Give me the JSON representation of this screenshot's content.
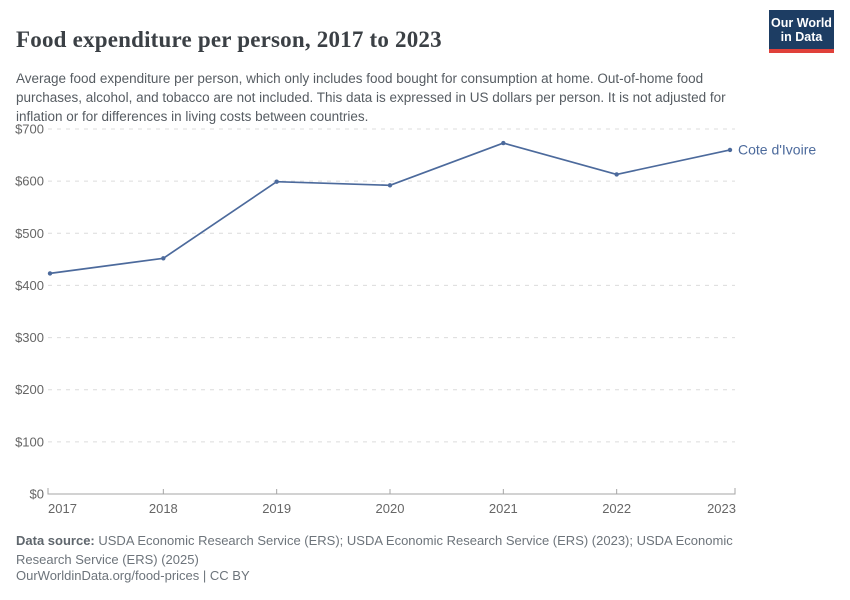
{
  "header": {
    "title": "Food expenditure per person, 2017 to 2023",
    "subtitle": "Average food expenditure per person, which only includes food bought for consumption at home. Out-of-home food purchases, alcohol, and tobacco are not included. This data is expressed in US dollars per person. It is not adjusted for inflation or for differences in living costs between countries.",
    "logo": {
      "line1": "Our World",
      "line2": "in Data"
    }
  },
  "chart_data": {
    "type": "line",
    "title": "Food expenditure per person, 2017 to 2023",
    "x": [
      2017,
      2018,
      2019,
      2020,
      2021,
      2022,
      2023
    ],
    "series": [
      {
        "name": "Cote d'Ivoire",
        "color": "#4C6A9C",
        "values": [
          423,
          452,
          599,
          592,
          673,
          613,
          660
        ]
      }
    ],
    "unit": "US dollars per person",
    "ylim": [
      0,
      700
    ],
    "yticks": [
      0,
      100,
      200,
      300,
      400,
      500,
      600,
      700
    ],
    "ytick_labels": [
      "$0",
      "$100",
      "$200",
      "$300",
      "$400",
      "$500",
      "$600",
      "$700"
    ],
    "xtick_labels": [
      "2017",
      "2018",
      "2019",
      "2020",
      "2021",
      "2022",
      "2023"
    ],
    "grid": "horizontal-dashed",
    "legend_position": "line-end-label"
  },
  "footer": {
    "data_source_label": "Data source:",
    "data_source_text": "USDA Economic Research Service (ERS); USDA Economic Research Service (ERS) (2023); USDA Economic Research Service (ERS) (2025)",
    "citation_line": "OurWorldinData.org/food-prices | CC BY"
  },
  "colors": {
    "line": "#4C6A9C",
    "grid": "#dcdcdc",
    "axis": "#a5a5a5",
    "tick_label": "#666666",
    "logo_bg": "#1d3d63",
    "logo_stripe": "#e0403a"
  }
}
